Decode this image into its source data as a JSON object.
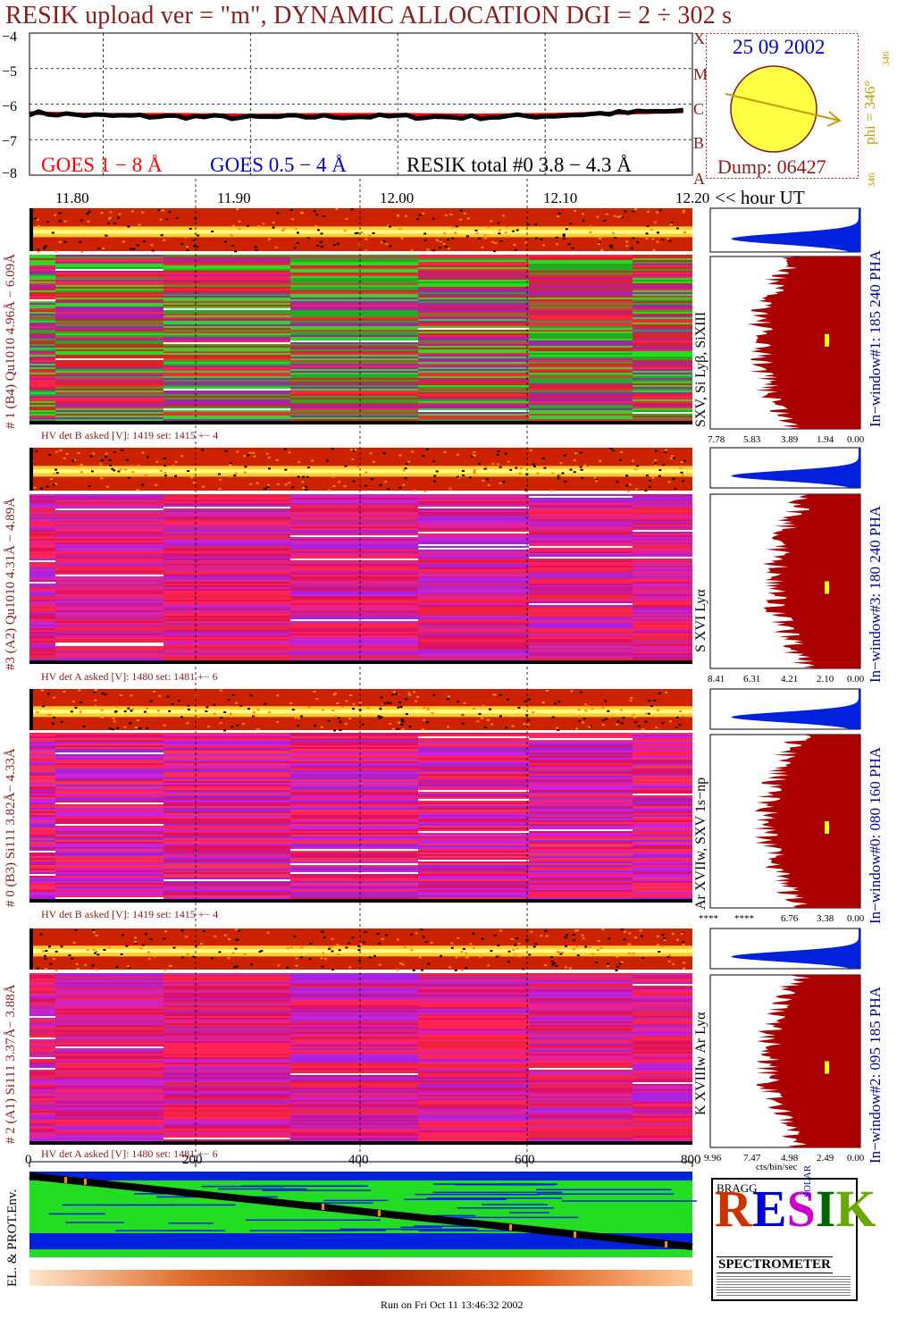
{
  "title": "RESIK upload ver = \"m\", DYNAMIC ALLOCATION  DGI =   2 ÷ 302 s",
  "lightcurve": {
    "y_ticks": [
      "−4",
      "−5",
      "−6",
      "−7",
      "−8"
    ],
    "legend_goes18": "GOES 1 − 8 Å",
    "legend_goes054": "GOES 0.5 − 4 Å",
    "legend_resik": "RESIK total #0  3.8 − 4.3 Å",
    "class_letters": [
      "A",
      "B",
      "C",
      "M",
      "X"
    ],
    "x_ticks": [
      "11.80",
      "11.90",
      "12.00",
      "12.10",
      "12.20"
    ],
    "x_axis_label": "<< hour UT"
  },
  "sun": {
    "date": "25 09 2002",
    "phi_label": "phi = 346°",
    "phi_small_top": "346",
    "phi_small_bottom": "346",
    "dump": "Dump: 06427"
  },
  "detectors": [
    {
      "left_label": "# 1 (B4) Qu1010 4.96Å − 6.09Å",
      "line_label": "SXV, Si Lyβ, SiXIII",
      "window_label": "In−window#1:  185 240 PHA",
      "hv": "HV det B asked [V]:  1419 set:  1415 +−    4",
      "hist_ticks": [
        "7.78",
        "5.83",
        "3.89",
        "1.94",
        "0.00"
      ]
    },
    {
      "left_label": "#3 (A2) Qu1010  4.31Å − 4.89Å",
      "line_label": "S XVI Lyα",
      "window_label": "In−window#3:  180 240 PHA",
      "hv": "HV det A asked [V]:  1480 set:  1481 +−    6",
      "hist_ticks": [
        "8.41",
        "6.31",
        "4.21",
        "2.10",
        "0.00"
      ]
    },
    {
      "left_label": "# 0 (B3) Si111  3.82Å− 4.33Å",
      "line_label": "Ar XVIIw,  SXV 1s−np",
      "window_label": "In−window#0:  080 160 PHA",
      "hv": "HV det B asked [V]:  1419 set:  1415 +−    4",
      "hist_ticks": [
        "****",
        "****",
        "6.76",
        "3.38",
        "0.00"
      ]
    },
    {
      "left_label": "# 2 (A1) Si111  3.37Å− 3.88Å",
      "line_label": "K XVIIIw  Ar Lyα",
      "window_label": "In−window#2:  095 185 PHA",
      "hv": "HV det A asked [V]:  1480 set:  1481 +−    6",
      "hist_ticks": [
        "9.96",
        "7.47",
        "4.98",
        "2.49",
        "0.00"
      ]
    }
  ],
  "hist_unit": "cts/bin/sec",
  "bottom_axis_ticks": [
    "0",
    "200",
    "400",
    "600",
    "800"
  ],
  "env_label": "EL. & PROT.Env.",
  "logo": {
    "spectrometer": "SPECTROMETER",
    "letters": "RESIK",
    "bragg": "BRAGG",
    "solar": "SOLAR"
  },
  "footer": "Run on Fri Oct 11 13:46:32 2002",
  "chart_data": {
    "type": "line",
    "title": "RESIK upload ver = \"m\", DYNAMIC ALLOCATION  DGI =   2 ÷ 302 s",
    "xlabel": "<< hour UT",
    "ylabel": "",
    "xlim": [
      11.75,
      12.2
    ],
    "ylim": [
      -8,
      -4
    ],
    "x": [
      11.75,
      11.8,
      11.85,
      11.9,
      11.95,
      12.0,
      12.05,
      12.1,
      12.15,
      12.2
    ],
    "series": [
      {
        "name": "GOES 1 − 8 Å",
        "color": "#ff0000",
        "values": [
          -6.25,
          -6.3,
          -6.3,
          -6.32,
          -6.3,
          -6.3,
          -6.32,
          -6.3,
          -6.25,
          -6.2
        ]
      },
      {
        "name": "RESIK total #0  3.8 − 4.3 Å",
        "color": "#000000",
        "values": [
          -6.25,
          -6.33,
          -6.35,
          -6.38,
          -6.35,
          -6.35,
          -6.37,
          -6.33,
          -6.25,
          -6.18
        ]
      }
    ]
  }
}
